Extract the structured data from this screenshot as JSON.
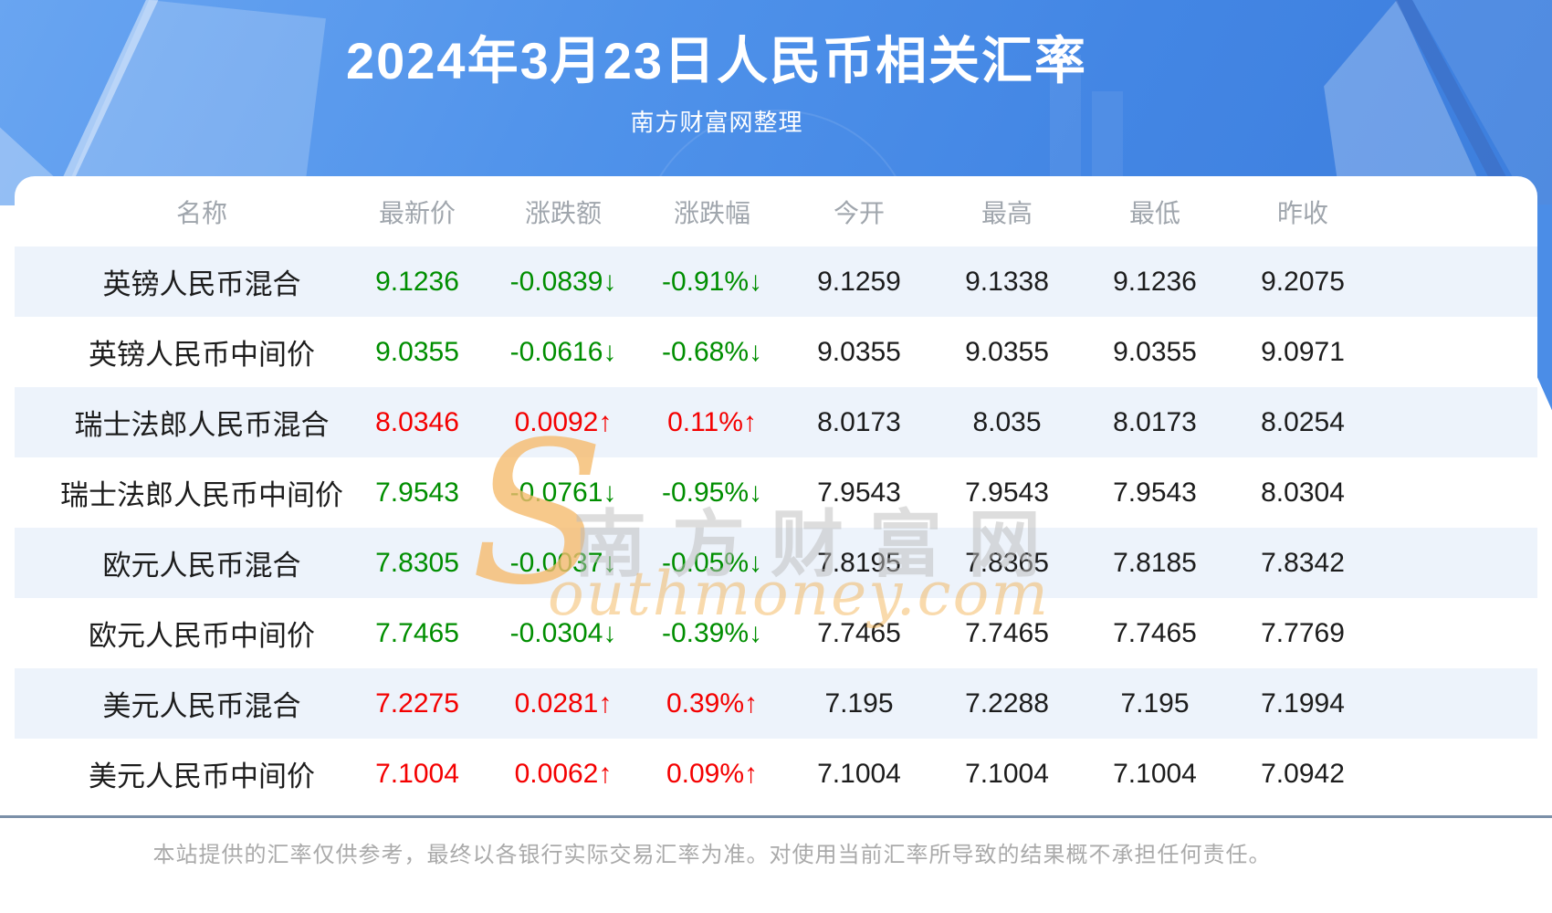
{
  "page": {
    "title": "2024年3月23日人民币相关汇率",
    "subtitle": "南方财富网整理",
    "disclaimer": "本站提供的汇率仅供参考，最终以各银行实际交易汇率为准。对使用当前汇率所导致的结果概不承担任何责任。"
  },
  "watermark": {
    "swoosh": "S",
    "cn": "南方财富网",
    "en": "outhmoney.com"
  },
  "colors": {
    "up": "#f40000",
    "down": "#008e00",
    "stripe": "#edf3fb",
    "header_text": "#a0a6ad",
    "hero_blue": "#4a8ce8",
    "divider": "#7b90a8"
  },
  "table": {
    "columns": [
      "名称",
      "最新价",
      "涨跌额",
      "涨跌幅",
      "今开",
      "最高",
      "最低",
      "昨收"
    ],
    "rows": [
      {
        "name": "英镑人民币混合",
        "latest": "9.1236",
        "change": "-0.0839↓",
        "pct": "-0.91%↓",
        "open": "9.1259",
        "high": "9.1338",
        "low": "9.1236",
        "prev": "9.2075",
        "trend": "down"
      },
      {
        "name": "英镑人民币中间价",
        "latest": "9.0355",
        "change": "-0.0616↓",
        "pct": "-0.68%↓",
        "open": "9.0355",
        "high": "9.0355",
        "low": "9.0355",
        "prev": "9.0971",
        "trend": "down"
      },
      {
        "name": "瑞士法郎人民币混合",
        "latest": "8.0346",
        "change": "0.0092↑",
        "pct": "0.11%↑",
        "open": "8.0173",
        "high": "8.035",
        "low": "8.0173",
        "prev": "8.0254",
        "trend": "up"
      },
      {
        "name": "瑞士法郎人民币中间价",
        "latest": "7.9543",
        "change": "-0.0761↓",
        "pct": "-0.95%↓",
        "open": "7.9543",
        "high": "7.9543",
        "low": "7.9543",
        "prev": "8.0304",
        "trend": "down"
      },
      {
        "name": "欧元人民币混合",
        "latest": "7.8305",
        "change": "-0.0037↓",
        "pct": "-0.05%↓",
        "open": "7.8195",
        "high": "7.8365",
        "low": "7.8185",
        "prev": "7.8342",
        "trend": "down"
      },
      {
        "name": "欧元人民币中间价",
        "latest": "7.7465",
        "change": "-0.0304↓",
        "pct": "-0.39%↓",
        "open": "7.7465",
        "high": "7.7465",
        "low": "7.7465",
        "prev": "7.7769",
        "trend": "down"
      },
      {
        "name": "美元人民币混合",
        "latest": "7.2275",
        "change": "0.0281↑",
        "pct": "0.39%↑",
        "open": "7.195",
        "high": "7.2288",
        "low": "7.195",
        "prev": "7.1994",
        "trend": "up"
      },
      {
        "name": "美元人民币中间价",
        "latest": "7.1004",
        "change": "0.0062↑",
        "pct": "0.09%↑",
        "open": "7.1004",
        "high": "7.1004",
        "low": "7.1004",
        "prev": "7.0942",
        "trend": "up"
      }
    ]
  },
  "chart_data": {
    "type": "table",
    "title": "2024年3月23日人民币相关汇率",
    "subtitle": "南方财富网整理",
    "columns": [
      "名称",
      "最新价",
      "涨跌额",
      "涨跌幅",
      "今开",
      "最高",
      "最低",
      "昨收"
    ],
    "rows": [
      [
        "英镑人民币混合",
        9.1236,
        -0.0839,
        "-0.91%",
        9.1259,
        9.1338,
        9.1236,
        9.2075
      ],
      [
        "英镑人民币中间价",
        9.0355,
        -0.0616,
        "-0.68%",
        9.0355,
        9.0355,
        9.0355,
        9.0971
      ],
      [
        "瑞士法郎人民币混合",
        8.0346,
        0.0092,
        "0.11%",
        8.0173,
        8.035,
        8.0173,
        8.0254
      ],
      [
        "瑞士法郎人民币中间价",
        7.9543,
        -0.0761,
        "-0.95%",
        7.9543,
        7.9543,
        7.9543,
        8.0304
      ],
      [
        "欧元人民币混合",
        7.8305,
        -0.0037,
        "-0.05%",
        7.8195,
        7.8365,
        7.8185,
        7.8342
      ],
      [
        "欧元人民币中间价",
        7.7465,
        -0.0304,
        "-0.39%",
        7.7465,
        7.7465,
        7.7465,
        7.7769
      ],
      [
        "美元人民币混合",
        7.2275,
        0.0281,
        "0.39%",
        7.195,
        7.2288,
        7.195,
        7.1994
      ],
      [
        "美元人民币中间价",
        7.1004,
        0.0062,
        "0.09%",
        7.1004,
        7.1004,
        7.1004,
        7.0942
      ]
    ],
    "notes": "红色=上涨(up), 绿色=下跌(down); 箭头↑↓跟随涨跌额与涨跌幅"
  }
}
